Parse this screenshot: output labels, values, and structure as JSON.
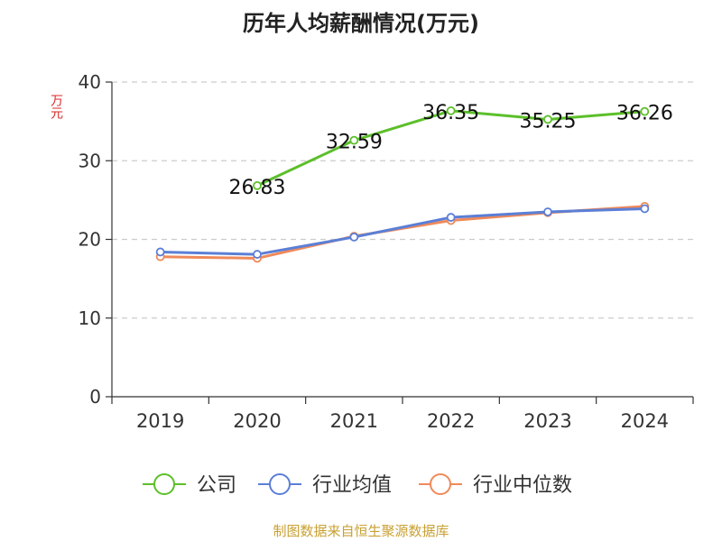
{
  "chart_data": {
    "type": "line",
    "title": "历年人均薪酬情况(万元)",
    "ylabel": "万元",
    "xlabel": "",
    "categories": [
      "2019",
      "2020",
      "2021",
      "2022",
      "2023",
      "2024"
    ],
    "ylim": [
      0,
      40
    ],
    "yticks": [
      "0",
      "10",
      "20",
      "30",
      "40"
    ],
    "grid": true,
    "legend_position": "bottom",
    "series": [
      {
        "name": "公司",
        "color": "#5cbf2a",
        "values": [
          null,
          26.83,
          32.59,
          36.35,
          35.25,
          36.26
        ],
        "labels": [
          "",
          "26.83",
          "32.59",
          "36.35",
          "35.25",
          "36.26"
        ]
      },
      {
        "name": "行业均值",
        "color": "#5b7fd6",
        "values": [
          18.4,
          18.1,
          20.3,
          22.8,
          23.5,
          23.9
        ]
      },
      {
        "name": "行业中位数",
        "color": "#f0895a",
        "values": [
          17.8,
          17.6,
          20.4,
          22.4,
          23.4,
          24.2
        ]
      }
    ]
  },
  "source_note": "制图数据来自恒生聚源数据库"
}
